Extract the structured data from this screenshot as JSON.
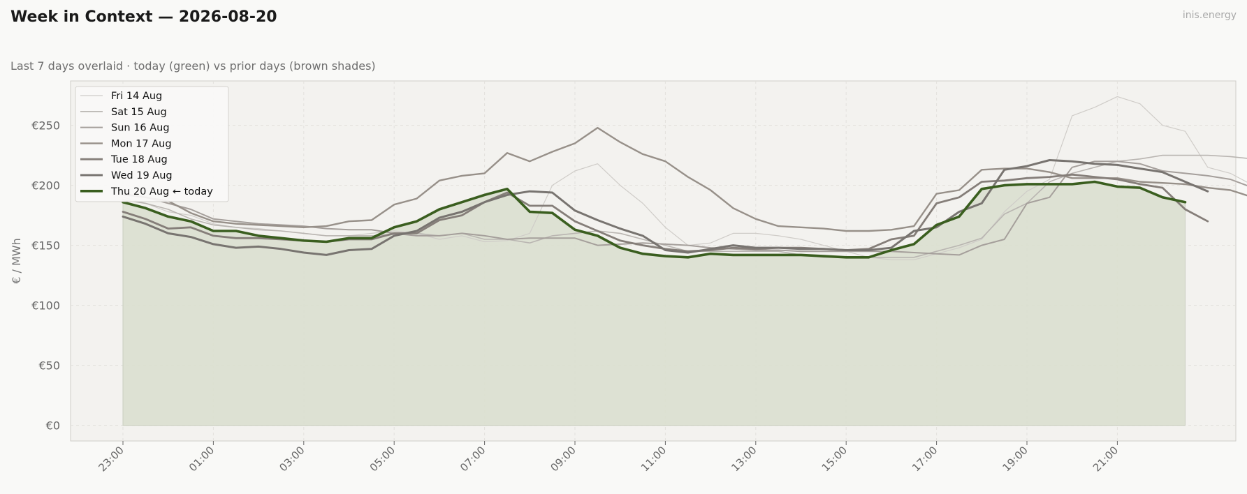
{
  "header": {
    "title": "Week in Context — 2026-08-20",
    "subtitle": "Last 7 days overlaid  ·  today (green) vs prior days (brown shades)",
    "brand": "inis.energy"
  },
  "colors": {
    "today": "#3a5e1f",
    "today_fill": "#dadfcf",
    "plot_bg": "#f3f2ef",
    "grid": "#e2e0dc"
  },
  "chart_data": {
    "type": "line",
    "ylabel": "€ / MWh",
    "ylim": [
      -13,
      287
    ],
    "yticks": [
      0,
      50,
      100,
      150,
      200,
      250
    ],
    "ytick_labels": [
      "€0",
      "€50",
      "€100",
      "€150",
      "€200",
      "€250"
    ],
    "x_start": "23:00",
    "x_step_minutes": 30,
    "xticks": [
      "23:00",
      "01:00",
      "03:00",
      "05:00",
      "07:00",
      "09:00",
      "11:00",
      "13:00",
      "15:00",
      "17:00",
      "19:00",
      "21:00"
    ],
    "grid": true,
    "legend_position": "top-left",
    "series": [
      {
        "name": "Fri 14 Aug",
        "color": "#cfccc8",
        "width": 1.2,
        "values": [
          190,
          185,
          178,
          175,
          168,
          165,
          164,
          162,
          160,
          158,
          158,
          160,
          162,
          160,
          155,
          158,
          153,
          154,
          160,
          200,
          212,
          218,
          200,
          185,
          165,
          150,
          152,
          160,
          160,
          158,
          155,
          150,
          145,
          140,
          138,
          138,
          143,
          148,
          155,
          178,
          195,
          205,
          258,
          265,
          274,
          268,
          250,
          245,
          215,
          210,
          200,
          190
        ]
      },
      {
        "name": "Sat 15 Aug",
        "color": "#b9b5b1",
        "width": 1.6,
        "values": [
          188,
          185,
          180,
          172,
          167,
          165,
          163,
          162,
          160,
          158,
          158,
          158,
          159,
          160,
          158,
          160,
          155,
          155,
          152,
          158,
          160,
          162,
          160,
          155,
          150,
          145,
          145,
          145,
          145,
          145,
          142,
          140,
          140,
          140,
          140,
          140,
          145,
          150,
          156,
          176,
          185,
          203,
          210,
          215,
          220,
          222,
          225,
          225,
          225,
          224,
          222,
          212
        ]
      },
      {
        "name": "Sun 16 Aug",
        "color": "#a59f9b",
        "width": 2.0,
        "values": [
          192,
          190,
          185,
          180,
          172,
          170,
          168,
          167,
          166,
          164,
          163,
          163,
          160,
          158,
          158,
          160,
          158,
          155,
          156,
          156,
          156,
          150,
          151,
          152,
          151,
          150,
          148,
          147,
          146,
          146,
          145,
          145,
          145,
          145,
          145,
          144,
          143,
          142,
          150,
          155,
          185,
          190,
          215,
          220,
          220,
          218,
          212,
          210,
          208,
          205,
          198,
          192
        ]
      },
      {
        "name": "Mon 17 Aug",
        "color": "#979089",
        "width": 2.4,
        "values": [
          193,
          190,
          187,
          177,
          170,
          168,
          167,
          166,
          165,
          166,
          170,
          171,
          184,
          189,
          204,
          208,
          210,
          227,
          220,
          228,
          235,
          248,
          236,
          226,
          220,
          207,
          196,
          181,
          172,
          166,
          165,
          164,
          162,
          162,
          163,
          166,
          193,
          196,
          213,
          214,
          214,
          211,
          206,
          206,
          206,
          203,
          202,
          201,
          198,
          196,
          190,
          187
        ]
      },
      {
        "name": "Tue 18 Aug",
        "color": "#857e79",
        "width": 2.8,
        "values": [
          178,
          172,
          164,
          165,
          158,
          156,
          156,
          155,
          154,
          153,
          155,
          155,
          160,
          160,
          171,
          175,
          186,
          194,
          183,
          183,
          170,
          162,
          154,
          150,
          147,
          145,
          146,
          148,
          147,
          148,
          148,
          147,
          146,
          147,
          155,
          158,
          185,
          190,
          203,
          204,
          206,
          207,
          209,
          207,
          205,
          201,
          198,
          180,
          170
        ]
      },
      {
        "name": "Wed 19 Aug",
        "color": "#787470",
        "width": 3.0,
        "values": [
          174,
          168,
          160,
          157,
          151,
          148,
          149,
          147,
          144,
          142,
          146,
          147,
          158,
          162,
          173,
          178,
          186,
          192,
          195,
          194,
          179,
          171,
          164,
          158,
          146,
          144,
          147,
          150,
          148,
          148,
          147,
          147,
          146,
          146,
          148,
          162,
          165,
          178,
          185,
          213,
          216,
          221,
          220,
          218,
          217,
          214,
          211,
          203,
          195
        ]
      },
      {
        "name": "Thu 20 Aug  ← today",
        "color": "#3a5e1f",
        "width": 3.6,
        "values": [
          186,
          181,
          174,
          170,
          162,
          162,
          158,
          156,
          154,
          153,
          156,
          156,
          165,
          170,
          180,
          186,
          192,
          197,
          178,
          177,
          163,
          158,
          148,
          143,
          141,
          140,
          143,
          142,
          142,
          142,
          142,
          141,
          140,
          140,
          146,
          151,
          167,
          174,
          197,
          200,
          201,
          201,
          201,
          203,
          199,
          198,
          190,
          186
        ]
      }
    ]
  }
}
